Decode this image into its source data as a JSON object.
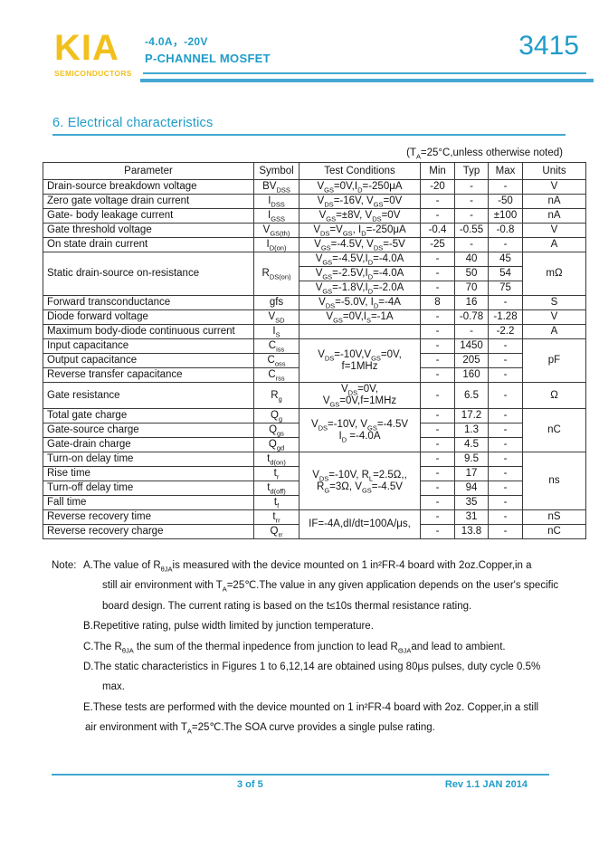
{
  "colors": {
    "accent": "#1f9cc9",
    "accent_light": "#42a8d1",
    "brand_yellow": "#f2c01c"
  },
  "header": {
    "brand": "KIA",
    "brand_sub": "SEMICONDUCTORS",
    "rating": "-4.0A，-20V",
    "device_type": "P-CHANNEL MOSFET",
    "part_number": "3415"
  },
  "section": {
    "title": "6.  Electrical characteristics",
    "condition_note": "(T~A~=25°C,unless otherwise noted)"
  },
  "table": {
    "headers": [
      "Parameter",
      "Symbol",
      "Test Conditions",
      "Min",
      "Typ",
      "Max",
      "Units"
    ],
    "rows": [
      {
        "param": "Drain-source breakdown voltage",
        "sym": "BV~DSS~",
        "cond": "V~GS~=0V,I~D~=-250μA",
        "min": "-20",
        "typ": "-",
        "max": "-",
        "units": "V"
      },
      {
        "param": "Zero gate voltage drain current",
        "sym": "I~DSS~",
        "cond": "V~DS~=-16V, V~GS~=0V",
        "min": "-",
        "typ": "-",
        "max": "-50",
        "units": "nA"
      },
      {
        "param": "Gate- body leakage current",
        "sym": "I~GSS~",
        "cond": "V~GS~=±8V, V~DS~=0V",
        "min": "-",
        "typ": "-",
        "max": "±100",
        "units": "nA"
      },
      {
        "param": "Gate threshold voltage",
        "sym": "V~GS(th)~",
        "cond": "V~DS~=V~GS~, I~D~=-250μA",
        "min": "-0.4",
        "typ": "-0.55",
        "max": "-0.8",
        "units": "V"
      },
      {
        "param": "On state drain current",
        "sym": "I~D(on)~",
        "cond": "V~GS~=-4.5V, V~DS~=-5V",
        "min": "-25",
        "typ": "-",
        "max": "-",
        "units": "A"
      },
      {
        "param": {
          "text": "Static drain-source on-resistance",
          "span": 3
        },
        "sym": {
          "text": "R~DS(on)~",
          "span": 3
        },
        "cond": "V~GS~=-4.5V,I~D~=-4.0A",
        "min": "-",
        "typ": "40",
        "max": "45",
        "units": {
          "text": "mΩ",
          "span": 3
        }
      },
      {
        "cond": "V~GS~=-2.5V,I~D~=-4.0A",
        "min": "-",
        "typ": "50",
        "max": "54"
      },
      {
        "cond": "V~GS~=-1.8V,I~D~=-2.0A",
        "min": "-",
        "typ": "70",
        "max": "75"
      },
      {
        "param": "Forward transconductance",
        "sym": "gfs",
        "cond": "V~DS~=-5.0V, I~D~=-4A",
        "min": "8",
        "typ": "16",
        "max": "-",
        "units": "S"
      },
      {
        "param": "Diode forward voltage",
        "sym": "V~SD~",
        "cond": "V~GS~=0V,I~S~=-1A",
        "min": "-",
        "typ": "-0.78",
        "max": "-1.28",
        "units": "V"
      },
      {
        "param": "Maximum body-diode continuous current",
        "sym": "I~S~",
        "cond": "",
        "min": "-",
        "typ": "-",
        "max": "-2.2",
        "units": "A"
      },
      {
        "param": "Input capacitance",
        "sym": "C~iss~",
        "cond": {
          "text": "V~DS~=-10V,V~GS~=0V,\nf=1MHz",
          "span": 3
        },
        "min": "-",
        "typ": "1450",
        "max": "-",
        "units": {
          "text": "pF",
          "span": 3
        }
      },
      {
        "param": "Output capacitance",
        "sym": "C~oss~",
        "min": "-",
        "typ": "205",
        "max": "-"
      },
      {
        "param": "Reverse transfer capacitance",
        "sym": "C~rss~",
        "min": "-",
        "typ": "160",
        "max": "-"
      },
      {
        "param": "Gate resistance",
        "sym": "R~g~",
        "cond": "V~DS~=0V,\nV~GS~=0V,f=1MHz",
        "min": "-",
        "typ": "6.5",
        "max": "-",
        "units": "Ω"
      },
      {
        "param": "Total gate charge",
        "sym": "Q~g~",
        "cond": {
          "text": "V~DS~=-10V, V~GS~=-4.5V\nI~D~ =-4.0A",
          "span": 3
        },
        "min": "-",
        "typ": "17.2",
        "max": "-",
        "units": {
          "text": "nC",
          "span": 3
        }
      },
      {
        "param": "Gate-source charge",
        "sym": "Q~gs~",
        "min": "-",
        "typ": "1.3",
        "max": "-"
      },
      {
        "param": "Gate-drain charge",
        "sym": "Q~gd~",
        "min": "-",
        "typ": "4.5",
        "max": "-"
      },
      {
        "param": "Turn-on delay time",
        "sym": "t~d(on)~",
        "cond": {
          "text": "V~DS~=-10V, R~L~=2.5Ω,,\nR~G~=3Ω, V~GS~=-4.5V",
          "span": 4
        },
        "min": "-",
        "typ": "9.5",
        "max": "-",
        "units": {
          "text": "ns",
          "span": 4
        }
      },
      {
        "param": "Rise time",
        "sym": "t~r~",
        "min": "-",
        "typ": "17",
        "max": "-"
      },
      {
        "param": "Turn-off delay time",
        "sym": "t~d(off)~",
        "min": "-",
        "typ": "94",
        "max": "-"
      },
      {
        "param": "Fall time",
        "sym": "t~f~",
        "min": "-",
        "typ": "35",
        "max": "-"
      },
      {
        "param": "Reverse recovery time",
        "sym": "t~rr~",
        "cond": {
          "text": "IF=-4A,dI/dt=100A/μs,",
          "span": 2
        },
        "min": "-",
        "typ": "31",
        "max": "-",
        "units": "nS"
      },
      {
        "param": "Reverse recovery charge",
        "sym": "Q~rr~",
        "min": "-",
        "typ": "13.8",
        "max": "-",
        "units": "nC"
      }
    ]
  },
  "notes": {
    "label": "Note:",
    "lines": [
      {
        "indent": 0,
        "text": "A.The value of R~θJA~is measured with the device mounted on 1 in²FR-4 board with 2oz.Copper,in a"
      },
      {
        "indent": 1,
        "text": "still air environment with T~A~=25℃.The value in any given application depends on the user's specific"
      },
      {
        "indent": 1,
        "text": "board design. The current rating is based on the t≤10s thermal resistance rating."
      },
      {
        "indent": 0,
        "text": "B.Repetitive rating, pulse width limited by junction temperature."
      },
      {
        "indent": 0,
        "text": "C.The R~θJA~  the sum of the thermal inpedence from junction to lead R~ΘJA~and lead to ambient."
      },
      {
        "indent": 0,
        "text": "D.The static characteristics in Figures 1 to 6,12,14 are obtained using 80μs pulses, duty cycle 0.5%"
      },
      {
        "indent": 1,
        "text": "max."
      },
      {
        "indent": 0,
        "text": "E.These tests are performed with the device mounted on 1 in²FR-4 board with 2oz. Copper,in a still"
      },
      {
        "indent": 2,
        "text": "air environment with T~A~=25℃.The SOA curve provides a single pulse rating."
      }
    ]
  },
  "footer": {
    "page": "3 of 5",
    "rev": "Rev 1.1 JAN 2014"
  }
}
